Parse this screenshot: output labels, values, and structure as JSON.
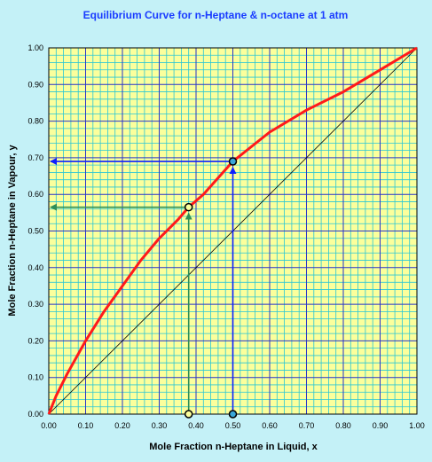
{
  "chart_data": {
    "type": "line",
    "title": "Equilibrium Curve for n-Heptane & n-octane at 1 atm",
    "xlabel": "Mole Fraction n-Heptane in Liquid, x",
    "ylabel": "Mole Fraction n-Heptane in Vapour, y",
    "xlim": [
      0,
      1
    ],
    "ylim": [
      0,
      1
    ],
    "grid": true,
    "x_ticks": [
      "0.00",
      "0.10",
      "0.20",
      "0.30",
      "0.40",
      "0.50",
      "0.60",
      "0.70",
      "0.80",
      "0.90",
      "1.00"
    ],
    "y_ticks": [
      "0.00",
      "0.10",
      "0.20",
      "0.30",
      "0.40",
      "0.50",
      "0.60",
      "0.70",
      "0.80",
      "0.90",
      "1.00"
    ],
    "series": [
      {
        "color": "#ff1a1a",
        "x": [
          0,
          0.02,
          0.05,
          0.1,
          0.15,
          0.2,
          0.25,
          0.3,
          0.35,
          0.38,
          0.42,
          0.5,
          0.55,
          0.6,
          0.7,
          0.8,
          0.9,
          1.0
        ],
        "y": [
          0,
          0.05,
          0.11,
          0.2,
          0.28,
          0.35,
          0.42,
          0.48,
          0.53,
          0.565,
          0.6,
          0.69,
          0.73,
          0.77,
          0.83,
          0.88,
          0.94,
          1.0
        ]
      },
      {
        "color": "#000000",
        "x": [
          0,
          1
        ],
        "y": [
          0,
          1
        ]
      }
    ],
    "annotations": [
      {
        "x": 0.38,
        "y": 0.565,
        "color": "#2f8f57"
      },
      {
        "x": 0.5,
        "y": 0.69,
        "color": "#0d1fff"
      }
    ],
    "colors": {
      "background": "#c4f1f7",
      "plot_background": "#fbff9c",
      "minor_grid": "#29c6d6",
      "major_grid": "#2a34c9"
    }
  }
}
